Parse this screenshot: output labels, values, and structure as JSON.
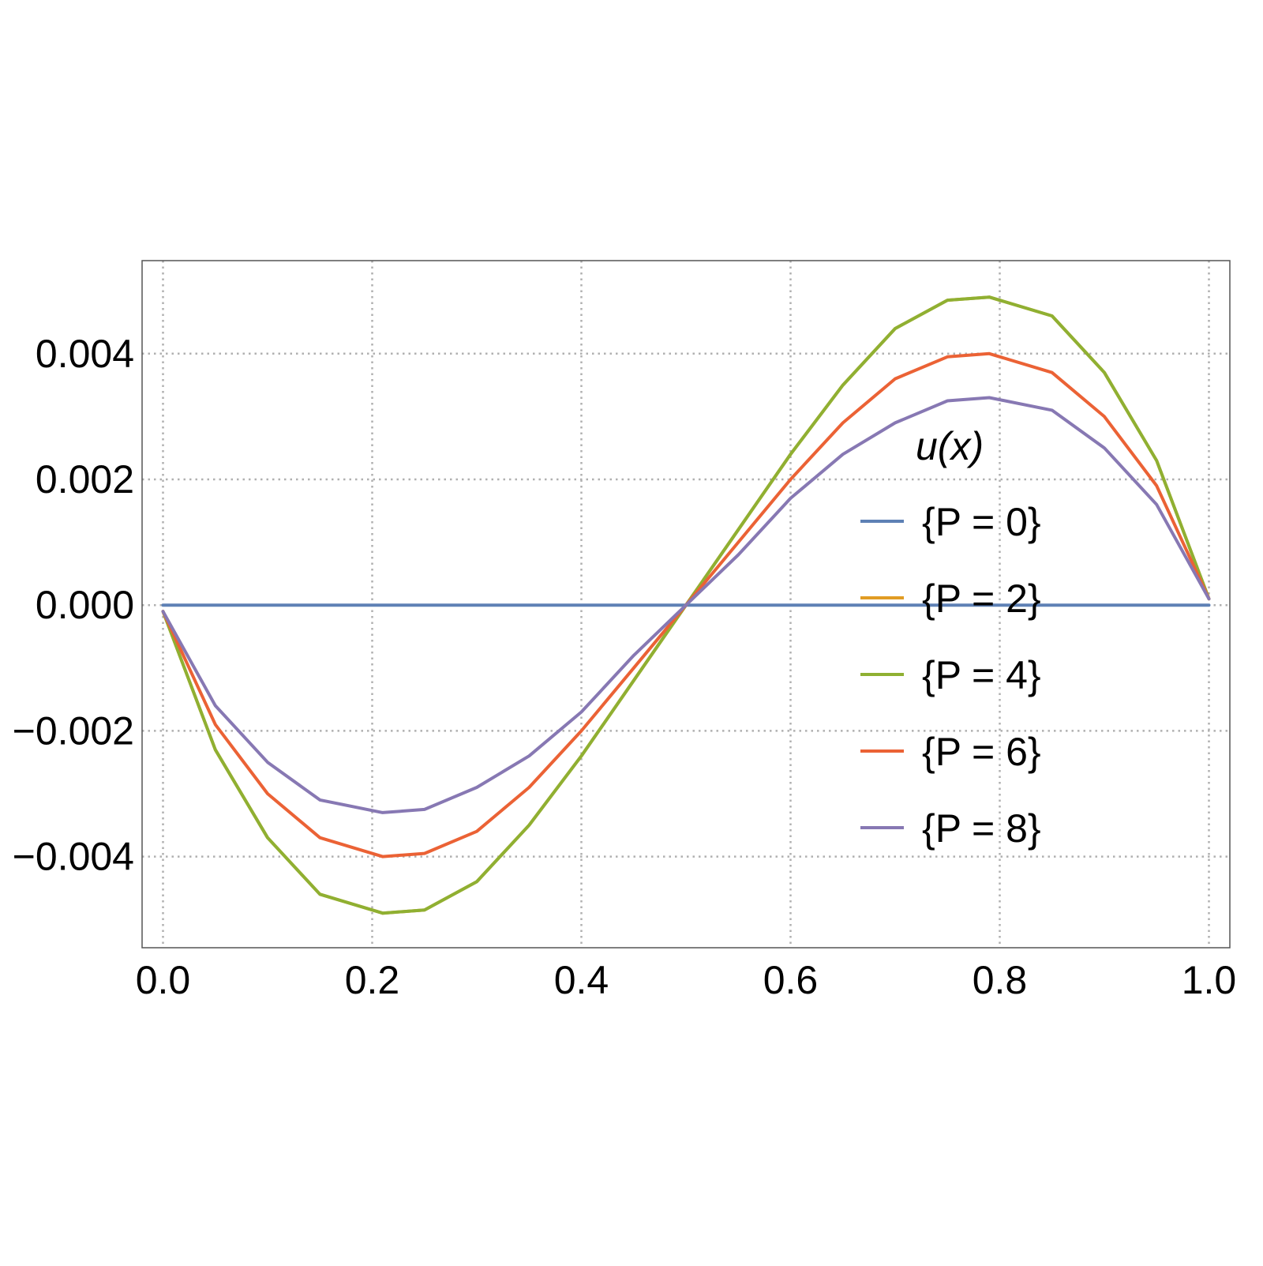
{
  "chart_data": {
    "type": "line",
    "title": "",
    "xlabel": "",
    "ylabel": "",
    "xlim": [
      -0.02,
      1.02
    ],
    "ylim": [
      -0.00545,
      0.00548
    ],
    "xticks": [
      "0.0",
      "0.2",
      "0.4",
      "0.6",
      "0.8",
      "1.0"
    ],
    "yticks": [
      "−0.004",
      "−0.002",
      "0.000",
      "0.002",
      "0.004"
    ],
    "grid": true,
    "legend_position": "right",
    "legend_title": "u(x)",
    "series": [
      {
        "name": "{P = 0}",
        "color": "#5E81B5",
        "x": [
          0.0,
          1.0
        ],
        "y": [
          0.0,
          0.0
        ]
      },
      {
        "name": "{P = 2}",
        "color": "#E19C24",
        "x": [
          0.0,
          0.05,
          0.1,
          0.15,
          0.21,
          0.25,
          0.3,
          0.35,
          0.4,
          0.45,
          0.5,
          0.55,
          0.6,
          0.65,
          0.7,
          0.75,
          0.79,
          0.85,
          0.9,
          0.95,
          1.0
        ],
        "y": [
          -0.0001,
          -0.0023,
          -0.0037,
          -0.0046,
          -0.0049,
          -0.00485,
          -0.0044,
          -0.0035,
          -0.0024,
          -0.0012,
          0.0,
          0.0012,
          0.0024,
          0.0035,
          0.0044,
          0.00485,
          0.0049,
          0.0046,
          0.0037,
          0.0023,
          0.0001
        ]
      },
      {
        "name": "{P = 4}",
        "color": "#8FB032",
        "x": [
          0.0,
          0.05,
          0.1,
          0.15,
          0.21,
          0.25,
          0.3,
          0.35,
          0.4,
          0.45,
          0.5,
          0.55,
          0.6,
          0.65,
          0.7,
          0.75,
          0.79,
          0.85,
          0.9,
          0.95,
          1.0
        ],
        "y": [
          -0.0001,
          -0.0023,
          -0.0037,
          -0.0046,
          -0.0049,
          -0.00485,
          -0.0044,
          -0.0035,
          -0.0024,
          -0.0012,
          0.0,
          0.0012,
          0.0024,
          0.0035,
          0.0044,
          0.00485,
          0.0049,
          0.0046,
          0.0037,
          0.0023,
          0.0001
        ]
      },
      {
        "name": "{P = 6}",
        "color": "#EB6235",
        "x": [
          0.0,
          0.05,
          0.1,
          0.15,
          0.21,
          0.25,
          0.3,
          0.35,
          0.4,
          0.45,
          0.5,
          0.55,
          0.6,
          0.65,
          0.7,
          0.75,
          0.79,
          0.85,
          0.9,
          0.95,
          1.0
        ],
        "y": [
          -0.0001,
          -0.0019,
          -0.003,
          -0.0037,
          -0.004,
          -0.00395,
          -0.0036,
          -0.0029,
          -0.002,
          -0.001,
          0.0,
          0.001,
          0.002,
          0.0029,
          0.0036,
          0.00395,
          0.004,
          0.0037,
          0.003,
          0.0019,
          0.0001
        ]
      },
      {
        "name": "{P = 8}",
        "color": "#8778B3",
        "x": [
          0.0,
          0.05,
          0.1,
          0.15,
          0.21,
          0.25,
          0.3,
          0.35,
          0.4,
          0.45,
          0.5,
          0.55,
          0.6,
          0.65,
          0.7,
          0.75,
          0.79,
          0.85,
          0.9,
          0.95,
          1.0
        ],
        "y": [
          -0.0001,
          -0.0016,
          -0.0025,
          -0.0031,
          -0.0033,
          -0.00325,
          -0.0029,
          -0.0024,
          -0.0017,
          -0.0008,
          0.0,
          0.0008,
          0.0017,
          0.0024,
          0.0029,
          0.00325,
          0.0033,
          0.0031,
          0.0025,
          0.0016,
          0.0001
        ]
      }
    ]
  }
}
